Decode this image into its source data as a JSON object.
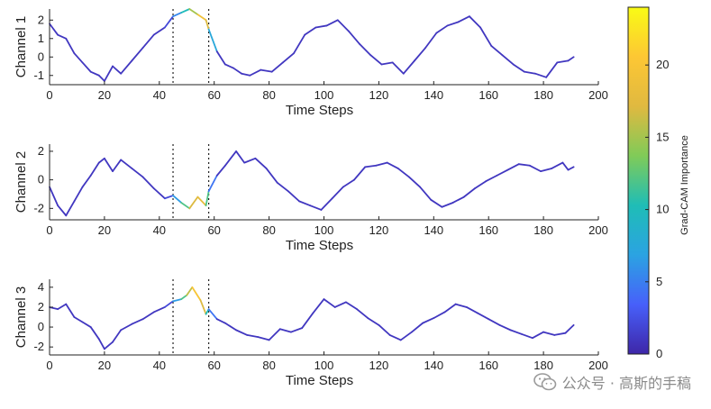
{
  "chart_data": {
    "type": "line",
    "gradcam_window": [
      45,
      58
    ],
    "colorbar": {
      "label": "Grad-CAM Importance",
      "range": [
        0,
        24
      ],
      "ticks": [
        0,
        5,
        10,
        15,
        20
      ],
      "colormap": [
        "#3e26a8",
        "#4760fa",
        "#2ba3e2",
        "#1fbdb6",
        "#80cb58",
        "#e0b940",
        "#fdc734",
        "#f9fb15"
      ]
    },
    "panels": [
      {
        "ylabel": "Channel 1",
        "xlabel": "Time Steps",
        "xlim": [
          0,
          200
        ],
        "ylim": [
          -1.5,
          2.6
        ],
        "xticks": [
          0,
          20,
          40,
          60,
          80,
          100,
          120,
          140,
          160,
          180,
          200
        ],
        "yticks": [
          -1,
          0,
          1,
          2
        ],
        "x": [
          0,
          3,
          6,
          9,
          12,
          15,
          18,
          20,
          23,
          26,
          30,
          34,
          38,
          42,
          45,
          48,
          51,
          54,
          57,
          58,
          61,
          64,
          67,
          70,
          73,
          77,
          81,
          85,
          89,
          93,
          97,
          101,
          105,
          109,
          113,
          117,
          121,
          125,
          129,
          133,
          137,
          141,
          145,
          149,
          153,
          157,
          161,
          165,
          169,
          173,
          177,
          181,
          185,
          189,
          191
        ],
        "y": [
          1.8,
          1.2,
          1.0,
          0.2,
          -0.3,
          -0.8,
          -1.0,
          -1.3,
          -0.5,
          -0.9,
          -0.2,
          0.5,
          1.2,
          1.6,
          2.2,
          2.4,
          2.6,
          2.3,
          2.0,
          1.5,
          0.3,
          -0.4,
          -0.6,
          -0.9,
          -1.0,
          -0.7,
          -0.8,
          -0.3,
          0.2,
          1.2,
          1.6,
          1.7,
          2.0,
          1.4,
          0.7,
          0.1,
          -0.4,
          -0.3,
          -0.9,
          -0.2,
          0.5,
          1.3,
          1.7,
          1.9,
          2.2,
          1.6,
          0.6,
          0.1,
          -0.4,
          -0.8,
          -0.9,
          -1.1,
          -0.3,
          -0.2,
          0.0
        ],
        "importance": [
          1,
          1,
          1,
          1,
          1,
          1,
          1,
          1,
          1,
          1,
          1,
          1,
          1,
          1,
          3,
          8,
          12,
          18,
          20,
          14,
          1,
          1,
          1,
          1,
          1,
          1,
          1,
          1,
          1,
          1,
          1,
          1,
          1,
          1,
          1,
          1,
          1,
          1,
          1,
          1,
          1,
          1,
          1,
          1,
          1,
          1,
          1,
          1,
          1,
          1,
          1,
          1,
          1,
          1,
          1
        ]
      },
      {
        "ylabel": "Channel 2",
        "xlabel": "Time Steps",
        "xlim": [
          0,
          200
        ],
        "ylim": [
          -2.8,
          2.5
        ],
        "xticks": [
          0,
          20,
          40,
          60,
          80,
          100,
          120,
          140,
          160,
          180,
          200
        ],
        "yticks": [
          -2,
          0,
          2
        ],
        "x": [
          0,
          3,
          6,
          9,
          12,
          15,
          18,
          20,
          23,
          26,
          30,
          34,
          38,
          42,
          45,
          48,
          51,
          54,
          57,
          58,
          61,
          64,
          68,
          71,
          75,
          79,
          83,
          87,
          91,
          95,
          99,
          103,
          107,
          111,
          115,
          119,
          123,
          127,
          131,
          135,
          139,
          143,
          147,
          151,
          155,
          159,
          163,
          167,
          171,
          175,
          179,
          183,
          187,
          189,
          191
        ],
        "y": [
          -0.5,
          -1.8,
          -2.5,
          -1.5,
          -0.5,
          0.3,
          1.2,
          1.5,
          0.6,
          1.4,
          0.8,
          0.2,
          -0.6,
          -1.3,
          -1.1,
          -1.6,
          -2.0,
          -1.2,
          -1.8,
          -0.8,
          0.3,
          1.0,
          2.0,
          1.2,
          1.5,
          0.8,
          -0.2,
          -0.8,
          -1.5,
          -1.8,
          -2.1,
          -1.3,
          -0.5,
          0.0,
          0.9,
          1.0,
          1.2,
          0.8,
          0.2,
          -0.5,
          -1.4,
          -1.9,
          -1.6,
          -1.2,
          -0.6,
          -0.1,
          0.3,
          0.7,
          1.1,
          1.0,
          0.6,
          0.8,
          1.2,
          0.7,
          0.9
        ],
        "importance": [
          1,
          1,
          1,
          1,
          1,
          1,
          1,
          1,
          1,
          1,
          1,
          1,
          1,
          1,
          3,
          10,
          14,
          20,
          16,
          8,
          1,
          1,
          1,
          1,
          1,
          1,
          1,
          1,
          1,
          1,
          1,
          1,
          1,
          1,
          1,
          1,
          1,
          1,
          1,
          1,
          1,
          1,
          1,
          1,
          1,
          1,
          1,
          1,
          1,
          1,
          1,
          1,
          1,
          1,
          1
        ]
      },
      {
        "ylabel": "Channel 3",
        "xlabel": "Time Steps",
        "xlim": [
          0,
          200
        ],
        "ylim": [
          -2.8,
          4.8
        ],
        "xticks": [
          0,
          20,
          40,
          60,
          80,
          100,
          120,
          140,
          160,
          180,
          200
        ],
        "yticks": [
          -2,
          0,
          2,
          4
        ],
        "x": [
          0,
          3,
          6,
          9,
          12,
          15,
          18,
          20,
          23,
          26,
          30,
          34,
          38,
          42,
          45,
          48,
          50,
          52,
          55,
          57,
          58,
          61,
          64,
          68,
          72,
          76,
          80,
          84,
          88,
          92,
          96,
          100,
          104,
          108,
          112,
          116,
          120,
          124,
          128,
          132,
          136,
          140,
          144,
          148,
          152,
          156,
          160,
          164,
          168,
          172,
          176,
          180,
          184,
          188,
          191
        ],
        "y": [
          2.0,
          1.8,
          2.3,
          1.0,
          0.5,
          0.0,
          -1.2,
          -2.2,
          -1.5,
          -0.3,
          0.3,
          0.8,
          1.5,
          2.0,
          2.6,
          2.8,
          3.2,
          4.0,
          2.7,
          1.3,
          1.8,
          0.8,
          0.4,
          -0.3,
          -0.8,
          -1.0,
          -1.3,
          -0.2,
          -0.5,
          -0.1,
          1.4,
          2.8,
          2.0,
          2.5,
          1.8,
          0.9,
          0.2,
          -0.8,
          -1.3,
          -0.5,
          0.4,
          0.9,
          1.5,
          2.3,
          2.0,
          1.4,
          0.8,
          0.2,
          -0.3,
          -0.7,
          -1.1,
          -0.5,
          -0.8,
          -0.6,
          0.2
        ],
        "importance": [
          1,
          1,
          1,
          1,
          1,
          1,
          1,
          1,
          1,
          1,
          1,
          1,
          1,
          1,
          3,
          10,
          14,
          18,
          22,
          12,
          8,
          1,
          1,
          1,
          1,
          1,
          1,
          1,
          1,
          1,
          1,
          1,
          1,
          1,
          1,
          1,
          1,
          1,
          1,
          1,
          1,
          1,
          1,
          1,
          1,
          1,
          1,
          1,
          1,
          1,
          1,
          1,
          1,
          1,
          1
        ]
      }
    ]
  },
  "watermark": {
    "text": "公众号 · 高斯的手稿",
    "icon": "wechat-icon"
  }
}
